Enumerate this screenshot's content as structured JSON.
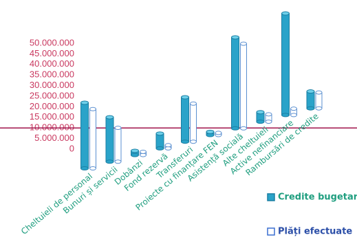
{
  "chart_data": {
    "type": "bar3d",
    "categories": [
      "Cheltuieli de personal",
      "Bunuri și servicii",
      "Dobânzi",
      "Fond rezervă",
      "Transferuri",
      "Proiecte cu finanțare FEN",
      "Asistență socială",
      "Alte cheltuieli",
      "Active nefinanciare",
      "Rambursări de credite"
    ],
    "series": [
      {
        "name": "Credite bugetare",
        "color": "#2aa3c9",
        "values": [
          31000000,
          21000000,
          2000000,
          7000000,
          21000000,
          1500000,
          43000000,
          4500000,
          48000000,
          8000000
        ]
      },
      {
        "name": "Plăți efectuate",
        "color": "#ffffff",
        "values": [
          28000000,
          16000000,
          1500000,
          1500000,
          18000000,
          1000000,
          40000000,
          3500000,
          3000000,
          7500000
        ]
      }
    ],
    "ylim": [
      0,
      50000000
    ],
    "yticks": [
      0,
      {
        "value": 5000000,
        "label": "5.000.000"
      },
      {
        "value": 10000000,
        "label": "10.000.000"
      },
      {
        "value": 15000000,
        "label": "15.000.000"
      },
      {
        "value": 20000000,
        "label": "20.000.000"
      },
      {
        "value": 25000000,
        "label": "25.000.000"
      },
      {
        "value": 30000000,
        "label": "30.000.000"
      },
      {
        "value": 35000000,
        "label": "35.000.000"
      },
      {
        "value": 40000000,
        "label": "40.000.000"
      },
      {
        "value": 45000000,
        "label": "45.000.000"
      },
      {
        "value": 50000000,
        "label": "50.000.000"
      }
    ]
  }
}
